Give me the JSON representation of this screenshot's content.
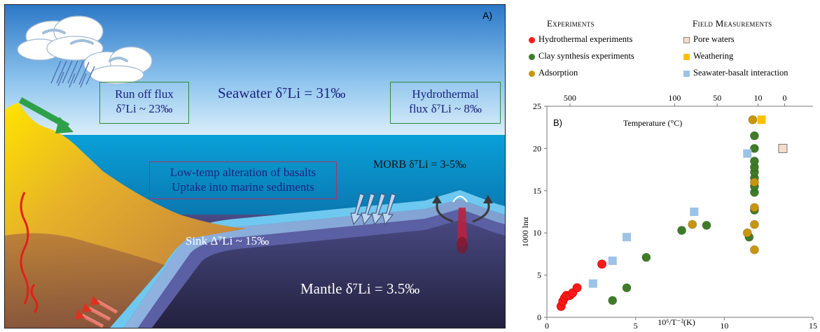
{
  "panelA": {
    "letter": "A)",
    "runoff": [
      "Run off flux",
      "δ⁷Li  ~ 23‰"
    ],
    "seawater": "Seawater δ⁷Li  = 31‰",
    "hydrothermal": [
      "Hydrothermal",
      "flux δ⁷Li  ~ 8‰"
    ],
    "lowtemp": [
      "Low-temp alteration of basalts",
      "Uptake into marine sediments"
    ],
    "morb": "MORB δ⁷Li = 3-5‰",
    "sink": "Sink Δ⁷Li ~ 15‰",
    "mantle": "Mantle δ⁷Li = 3.5‰"
  },
  "legend": {
    "experiments_head": "Experiments",
    "field_head": "Field Measurements",
    "items": [
      {
        "label": "Hydrothermal experiments",
        "shape": "circle",
        "color": "#ff1a1a"
      },
      {
        "label": "Clay synthesis experiments",
        "shape": "circle",
        "color": "#3e7c28"
      },
      {
        "label": "Adsorption",
        "shape": "circle",
        "color": "#c8960e"
      },
      {
        "label": "Pore waters",
        "shape": "square",
        "color": "#f5dccb"
      },
      {
        "label": "Weathering",
        "shape": "square",
        "color": "#ffc000"
      },
      {
        "label": "Seawater-basalt interaction",
        "shape": "square",
        "color": "#9dc3e6"
      }
    ]
  },
  "chart_data": {
    "type": "scatter",
    "panel_label": "B)",
    "xlabel": "10⁶/T⁻²(K)",
    "ylabel": "1000 lnα",
    "top_xlabel": "Temperature (°C)",
    "xlim": [
      0,
      15
    ],
    "ylim": [
      0,
      25
    ],
    "xticks": [
      0,
      5,
      10,
      15
    ],
    "yticks": [
      0,
      5,
      10,
      15,
      20,
      25
    ],
    "top_ticks": [
      {
        "label": "500",
        "x": 1.3
      },
      {
        "label": "100",
        "x": 7.2
      },
      {
        "label": "50",
        "x": 9.6
      },
      {
        "label": "10",
        "x": 11.9
      },
      {
        "label": "0",
        "x": 13.4
      }
    ],
    "series": [
      {
        "name": "Hydrothermal experiments",
        "marker": "circle",
        "color": "#ff1a1a",
        "points": [
          [
            0.8,
            1.3
          ],
          [
            0.9,
            1.9
          ],
          [
            1.0,
            2.3
          ],
          [
            1.1,
            2.6
          ],
          [
            1.3,
            2.6
          ],
          [
            1.45,
            2.9
          ],
          [
            1.7,
            3.5
          ],
          [
            3.1,
            6.3
          ]
        ]
      },
      {
        "name": "Clay synthesis experiments",
        "marker": "circle",
        "color": "#3e7c28",
        "points": [
          [
            3.7,
            2.0
          ],
          [
            4.5,
            3.5
          ],
          [
            5.6,
            7.1
          ],
          [
            7.6,
            10.3
          ],
          [
            9.0,
            10.9
          ],
          [
            11.4,
            9.5
          ],
          [
            11.7,
            12.7
          ],
          [
            11.7,
            14.8
          ],
          [
            11.7,
            15.5
          ],
          [
            11.7,
            16.5
          ],
          [
            11.7,
            17.2
          ],
          [
            11.7,
            17.8
          ],
          [
            11.7,
            18.5
          ],
          [
            11.7,
            20.0
          ],
          [
            11.7,
            21.5
          ]
        ]
      },
      {
        "name": "Adsorption",
        "marker": "circle",
        "color": "#c8960e",
        "points": [
          [
            8.2,
            11.0
          ],
          [
            11.3,
            10.0
          ],
          [
            11.7,
            8.0
          ],
          [
            11.7,
            11.0
          ],
          [
            11.7,
            13.0
          ],
          [
            11.7,
            16.0
          ],
          [
            11.6,
            23.4
          ]
        ]
      },
      {
        "name": "Pore waters",
        "marker": "square",
        "color": "#f5dccb",
        "points": [
          [
            13.3,
            20.0
          ]
        ]
      },
      {
        "name": "Weathering",
        "marker": "square",
        "color": "#ffc000",
        "points": [
          [
            12.1,
            23.4
          ]
        ]
      },
      {
        "name": "Seawater-basalt interaction",
        "marker": "square",
        "color": "#9dc3e6",
        "points": [
          [
            2.6,
            4.0
          ],
          [
            3.7,
            6.7
          ],
          [
            4.5,
            9.5
          ],
          [
            8.3,
            12.5
          ],
          [
            11.3,
            19.4
          ]
        ]
      }
    ]
  }
}
